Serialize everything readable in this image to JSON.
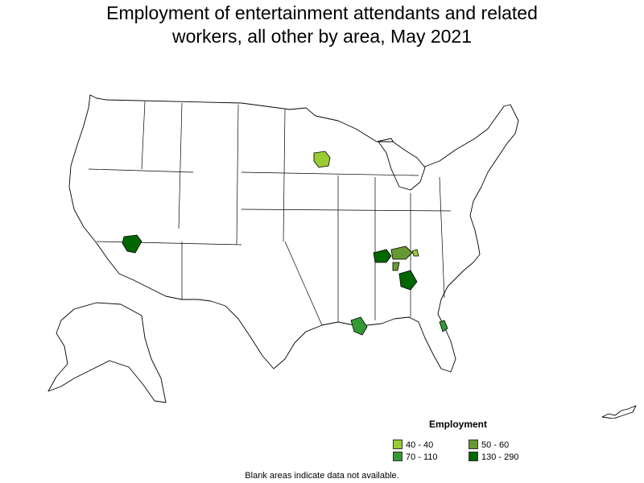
{
  "title": {
    "line1": "Employment of entertainment attendants and related",
    "line2": "workers, all other by area, May 2021"
  },
  "legend": {
    "title": "Employment",
    "items": [
      {
        "label": "40 - 40",
        "color": "#99cc33"
      },
      {
        "label": "50 - 60",
        "color": "#669933"
      },
      {
        "label": "70 - 110",
        "color": "#339933"
      },
      {
        "label": "130 - 290",
        "color": "#006600"
      }
    ]
  },
  "note": "Blank areas indicate data not available.",
  "colors": {
    "outline": "#000000",
    "blank": "#ffffff"
  }
}
